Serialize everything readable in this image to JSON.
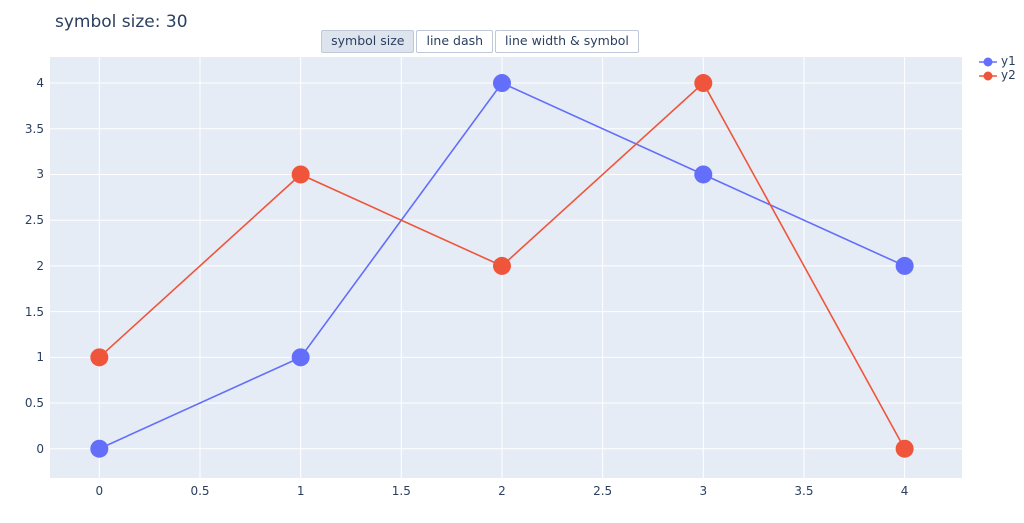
{
  "title": "symbol size: 30",
  "controls": {
    "buttons": [
      {
        "label": "symbol size",
        "active": true
      },
      {
        "label": "line dash",
        "active": false
      },
      {
        "label": "line width & symbol",
        "active": false
      }
    ]
  },
  "colors": {
    "text": "#2a3f5f",
    "plot_background": "#e5ecf6",
    "gridline": "#ffffff",
    "button_border": "#bec8d9",
    "button_active_background": "#dde4ee",
    "series_y1": "#636efa",
    "series_y2": "#ef553b"
  },
  "chart_data": {
    "type": "line",
    "title": "symbol size: 30",
    "x": [
      0,
      1,
      2,
      3,
      4
    ],
    "series": [
      {
        "name": "y1",
        "color": "#636efa",
        "values": [
          0,
          1,
          4,
          3,
          2
        ],
        "marker_size": 30
      },
      {
        "name": "y2",
        "color": "#ef553b",
        "values": [
          1,
          3,
          2,
          4,
          0
        ],
        "marker_size": 30
      }
    ],
    "x_ticks": [
      0,
      0.5,
      1,
      1.5,
      2,
      2.5,
      3,
      3.5,
      4
    ],
    "y_ticks": [
      0,
      0.5,
      1,
      1.5,
      2,
      2.5,
      3,
      3.5,
      4
    ],
    "x_range": [
      -0.245,
      4.285
    ],
    "y_range": [
      -0.32,
      4.285
    ],
    "grid": true,
    "legend_position": "top-right",
    "legend": [
      "y1",
      "y2"
    ]
  }
}
